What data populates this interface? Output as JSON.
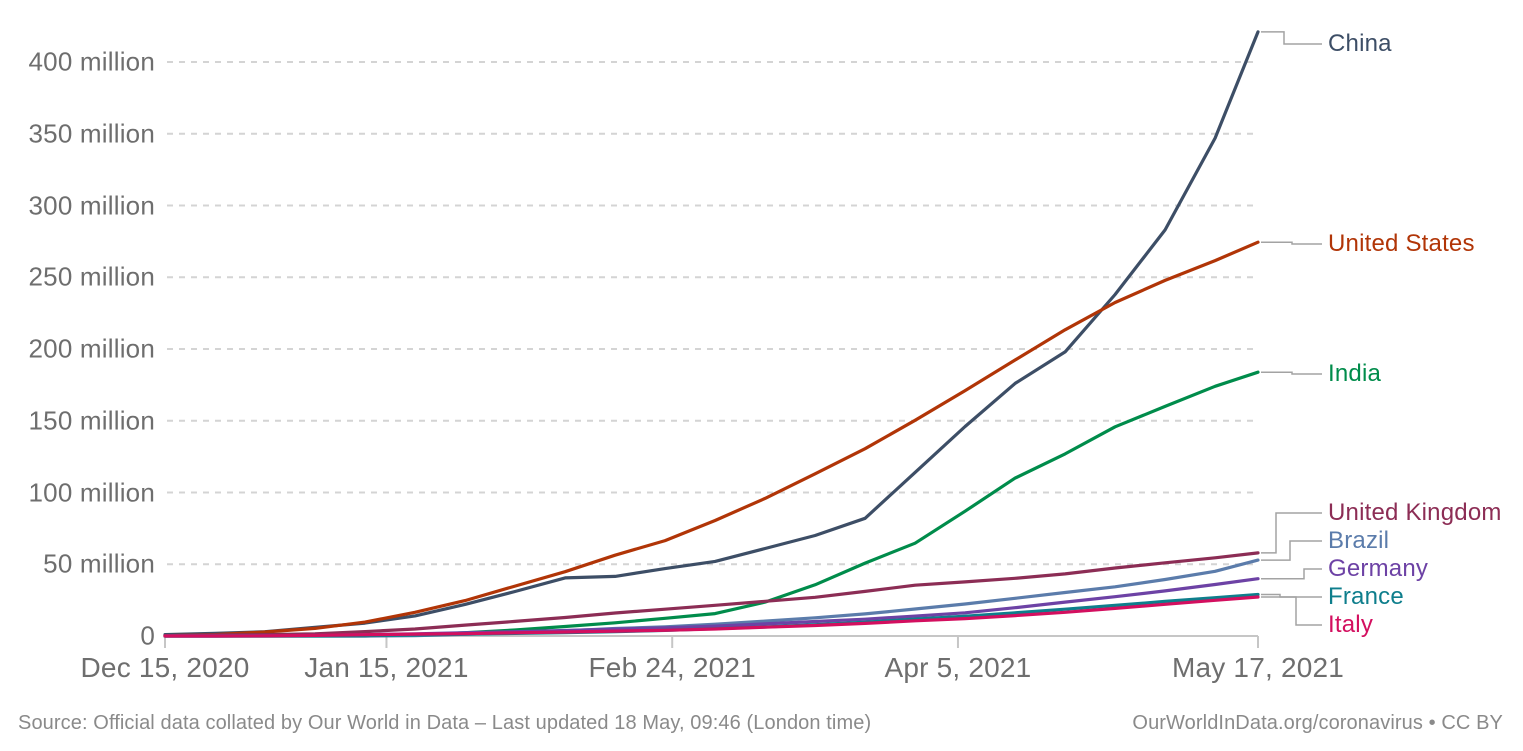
{
  "chart_data": {
    "type": "line",
    "title": "",
    "xlabel": "",
    "ylabel": "",
    "x_unit": "days since Dec 15, 2020",
    "ylim": [
      0,
      400
    ],
    "grid": "dashed-horizontal",
    "legend_position": "right-of-line-ends",
    "x": [
      0,
      7,
      14,
      21,
      28,
      35,
      42,
      49,
      56,
      63,
      70,
      77,
      84,
      91,
      98,
      105,
      112,
      119,
      126,
      133,
      140,
      147,
      153
    ],
    "x_axis_ticks": [
      {
        "day": 0,
        "label": "Dec 15, 2020"
      },
      {
        "day": 31,
        "label": "Jan 15, 2021"
      },
      {
        "day": 71,
        "label": "Feb 24, 2021"
      },
      {
        "day": 111,
        "label": "Apr 5, 2021"
      },
      {
        "day": 153,
        "label": "May 17, 2021"
      }
    ],
    "y_axis_ticks": [
      {
        "value": 0,
        "label": "0"
      },
      {
        "value": 50,
        "label": "50 million"
      },
      {
        "value": 100,
        "label": "100 million"
      },
      {
        "value": 150,
        "label": "150 million"
      },
      {
        "value": 200,
        "label": "200 million"
      },
      {
        "value": 250,
        "label": "250 million"
      },
      {
        "value": 300,
        "label": "300 million"
      },
      {
        "value": 350,
        "label": "350 million"
      },
      {
        "value": 400,
        "label": "400 million"
      }
    ],
    "value_unit": "million",
    "series": [
      {
        "name": "China",
        "color": "#3D4E66",
        "values": [
          1,
          1.8,
          3,
          6,
          9,
          14,
          22,
          31,
          40.5,
          41.5,
          47,
          52,
          61,
          70,
          82,
          114,
          146,
          176,
          198,
          238,
          283,
          347,
          421
        ]
      },
      {
        "name": "United States",
        "color": "#B13507",
        "values": [
          0.2,
          1.0,
          2.8,
          5.3,
          9.7,
          16.5,
          24.7,
          34.8,
          44.8,
          56.3,
          66.5,
          80.5,
          95.9,
          113.0,
          130.5,
          150.3,
          171.0,
          192.3,
          213.4,
          232.4,
          247.8,
          261.6,
          274.4
        ]
      },
      {
        "name": "India",
        "color": "#008C4B",
        "values": [
          0,
          0,
          0,
          0,
          0,
          0.6,
          2.3,
          4.2,
          6.6,
          9.2,
          12.3,
          15.6,
          23.6,
          35.7,
          50.8,
          64.7,
          87.0,
          110.0,
          126.9,
          145.8,
          160.0,
          174.0,
          183.8
        ]
      },
      {
        "name": "United Kingdom",
        "color": "#8C2D55",
        "values": [
          0.2,
          0.7,
          1.0,
          1.5,
          3.1,
          4.9,
          7.6,
          10.2,
          12.9,
          16.0,
          18.7,
          21.4,
          24.2,
          27.0,
          31.1,
          35.4,
          37.7,
          40.2,
          43.3,
          47.4,
          51.0,
          54.5,
          57.9
        ]
      },
      {
        "name": "Brazil",
        "color": "#5B7CAB",
        "values": [
          0,
          0,
          0,
          0,
          0,
          0.2,
          1.2,
          2.3,
          3.6,
          5.2,
          6.4,
          8.2,
          10.4,
          12.7,
          15.4,
          18.8,
          22.3,
          26.3,
          30.3,
          34.3,
          39.4,
          45.1,
          52.9
        ]
      },
      {
        "name": "Germany",
        "color": "#6D42A5",
        "values": [
          0,
          0,
          0.2,
          0.4,
          0.9,
          1.5,
          2.3,
          3.0,
          3.8,
          4.8,
          5.7,
          6.9,
          8.4,
          10.1,
          11.7,
          13.9,
          16.2,
          19.7,
          23.6,
          27.4,
          31.4,
          35.9,
          39.9
        ]
      },
      {
        "name": "France",
        "color": "#0E7E8C",
        "values": [
          0,
          0,
          0,
          0.1,
          0.3,
          0.7,
          1.3,
          1.8,
          2.3,
          3.0,
          3.9,
          5.1,
          6.3,
          7.9,
          9.6,
          11.8,
          13.8,
          16.2,
          18.7,
          21.3,
          24.1,
          26.7,
          28.9
        ]
      },
      {
        "name": "Italy",
        "color": "#D30F5F",
        "values": [
          0,
          0,
          0.1,
          0.4,
          0.9,
          1.3,
          1.6,
          2.2,
          2.8,
          3.4,
          4.0,
          4.9,
          6.1,
          7.3,
          8.8,
          10.6,
          12.1,
          14.2,
          16.5,
          19.2,
          22.1,
          24.9,
          27.2
        ]
      }
    ]
  },
  "colors": {
    "gridline": "#d4d4d4",
    "axis": "#c6c6c6",
    "connector": "#a3a3a3",
    "axis_text": "#6e6e6e",
    "footer_text": "#8a8a8a"
  },
  "footer": {
    "source": "Source: Official data collated by Our World in Data – Last updated 18 May, 09:46 (London time)",
    "credit": "OurWorldInData.org/coronavirus • CC BY"
  }
}
